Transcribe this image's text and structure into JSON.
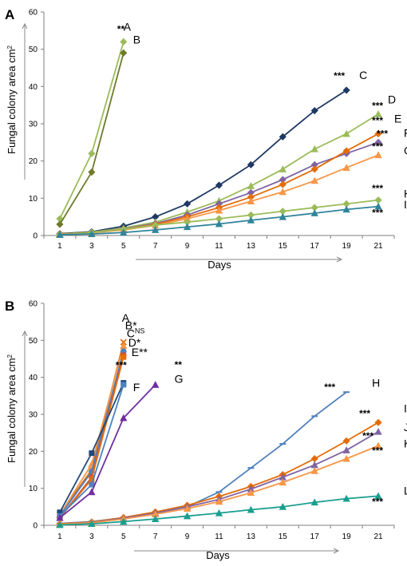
{
  "chart_data": [
    {
      "panel": "A",
      "type": "line",
      "ylabel": "Fungal colony area cm",
      "ylabel_superscript": "2",
      "xlabel": "Days",
      "x": [
        1,
        3,
        5,
        7,
        9,
        11,
        13,
        15,
        17,
        19,
        21
      ],
      "ylim": [
        0,
        60
      ],
      "yticks": [
        0,
        10,
        20,
        30,
        40,
        50,
        60
      ],
      "grid": false,
      "series": [
        {
          "name": "A",
          "color": "#9bbb59",
          "marker": "diamond",
          "x": [
            1,
            3,
            5
          ],
          "values": [
            4.5,
            22,
            52
          ],
          "label_x": 5,
          "label_y": 55,
          "sig": ""
        },
        {
          "name": "B",
          "color": "#6f7a2a",
          "marker": "diamond",
          "x": [
            1,
            3,
            5
          ],
          "values": [
            3,
            17,
            49
          ],
          "label_x": 5.6,
          "label_y": 51.5,
          "sig": "**"
        },
        {
          "name": "C",
          "color": "#1f3864",
          "marker": "diamond",
          "x": [
            1,
            3,
            5,
            7,
            9,
            11,
            13,
            15,
            17,
            19
          ],
          "values": [
            0.5,
            1,
            2.5,
            5,
            8.5,
            13.5,
            19,
            26.5,
            33.5,
            39
          ],
          "label_x": 19.8,
          "label_y": 42,
          "sig": "***"
        },
        {
          "name": "D",
          "color": "#9bbb59",
          "marker": "triangle",
          "x": [
            1,
            3,
            5,
            7,
            9,
            11,
            13,
            15,
            17,
            19,
            21
          ],
          "values": [
            0.4,
            0.9,
            2,
            3.6,
            6.3,
            9.3,
            13.3,
            17.8,
            23.2,
            27.3,
            32.6
          ],
          "label_x": 21.6,
          "label_y": 35.5,
          "sig": "***"
        },
        {
          "name": "E",
          "color": "#8064a2",
          "marker": "diamond",
          "x": [
            1,
            3,
            5,
            7,
            9,
            11,
            13,
            15,
            17,
            19,
            21
          ],
          "values": [
            0.4,
            0.8,
            1.8,
            3.2,
            5.5,
            8.5,
            11.5,
            15,
            19,
            22,
            25
          ],
          "label_x": 22,
          "label_y": 30.3,
          "sig": "***"
        },
        {
          "name": "F",
          "color": "#e36c09",
          "marker": "diamond",
          "x": [
            1,
            3,
            5,
            7,
            9,
            11,
            13,
            15,
            17,
            19,
            21
          ],
          "values": [
            0.4,
            0.8,
            1.7,
            3,
            5,
            7.5,
            10.3,
            13.7,
            17.8,
            22.7,
            27.3
          ],
          "label_x": 22.6,
          "label_y": 26.5,
          "sig": "***"
        },
        {
          "name": "G",
          "color": "#f79646",
          "marker": "triangle",
          "x": [
            1,
            3,
            5,
            7,
            9,
            11,
            13,
            15,
            17,
            19,
            21
          ],
          "values": [
            0.3,
            0.7,
            1.5,
            2.7,
            4.5,
            6.7,
            9.2,
            11.7,
            14.7,
            18.2,
            21.6
          ],
          "label_x": 22.6,
          "label_y": 21.8,
          "sig": "***"
        },
        {
          "name": "H",
          "color": "#9bbb59",
          "marker": "diamond",
          "x": [
            1,
            3,
            5,
            7,
            9,
            11,
            13,
            15,
            17,
            19,
            21
          ],
          "values": [
            0.3,
            0.8,
            1.7,
            2.8,
            3.6,
            4.5,
            5.5,
            6.5,
            7.5,
            8.5,
            9.5
          ],
          "label_x": 22.6,
          "label_y": 10.2,
          "sig": "***"
        },
        {
          "name": "I",
          "color": "#31849b",
          "marker": "triangle",
          "x": [
            1,
            3,
            5,
            7,
            9,
            11,
            13,
            15,
            17,
            19,
            21
          ],
          "values": [
            0.2,
            0.4,
            0.8,
            1.5,
            2.3,
            3.1,
            4.1,
            5,
            6,
            7,
            7.8
          ],
          "label_x": 22.6,
          "label_y": 7.3,
          "sig": "***"
        }
      ],
      "significance": [
        {
          "text": "**",
          "x": 4.6,
          "y": 54.5
        },
        {
          "text": "***",
          "x": 18.2,
          "y": 42
        },
        {
          "text": "***",
          "x": 20.6,
          "y": 34
        },
        {
          "text": "***",
          "x": 20.6,
          "y": 30
        },
        {
          "text": "***",
          "x": 20.9,
          "y": 26.5
        },
        {
          "text": "***",
          "x": 20.6,
          "y": 23
        },
        {
          "text": "***",
          "x": 20.6,
          "y": 11.8
        },
        {
          "text": "***",
          "x": 20.6,
          "y": 5.3
        }
      ]
    },
    {
      "panel": "B",
      "type": "line",
      "ylabel": "Fungal colony area cm",
      "ylabel_superscript": "2",
      "xlabel": "Days",
      "x": [
        1,
        3,
        5,
        7,
        9,
        11,
        13,
        15,
        17,
        19,
        21
      ],
      "ylim": [
        0,
        60
      ],
      "yticks": [
        0,
        10,
        20,
        30,
        40,
        50,
        60
      ],
      "grid": false,
      "series": [
        {
          "name": "A",
          "label": "A",
          "color": "#e36c09",
          "marker": "x",
          "x": [
            1,
            3,
            5
          ],
          "values": [
            3,
            15,
            49.5
          ],
          "label_x": 4.9,
          "label_y": 55
        },
        {
          "name": "B",
          "label": "B*",
          "color": "#f79646",
          "marker": "triangle",
          "x": [
            1,
            3,
            5
          ],
          "values": [
            2.8,
            16.5,
            48.5
          ],
          "label_x": 5.1,
          "label_y": 53
        },
        {
          "name": "C",
          "label": "C",
          "sup": "NS",
          "color": "#4f81bd",
          "marker": "circle",
          "x": [
            1,
            3,
            5
          ],
          "values": [
            2.5,
            14.5,
            47
          ],
          "label_x": 5.2,
          "label_y": 50.8
        },
        {
          "name": "D",
          "label": "D*",
          "color": "#c0504d",
          "marker": "circle",
          "x": [
            1,
            3,
            5
          ],
          "values": [
            2,
            13,
            46
          ],
          "label_x": 5.3,
          "label_y": 48.3
        },
        {
          "name": "E",
          "label": "E**",
          "color": "#e46c0a",
          "marker": "square",
          "x": [
            1,
            3,
            5
          ],
          "values": [
            2,
            12.5,
            45.5
          ],
          "label_x": 5.5,
          "label_y": 45.8
        },
        {
          "name": "F",
          "label": "F",
          "color": "#1f497d",
          "marker": "square",
          "x": [
            1,
            3,
            5
          ],
          "values": [
            3.5,
            19.5,
            38.5
          ],
          "label_x": 5.6,
          "label_y": 36.3
        },
        {
          "name": "F2",
          "label": "",
          "color": "#4f81bd",
          "marker": "square",
          "x": [
            1,
            3,
            5
          ],
          "values": [
            2.5,
            11,
            38
          ],
          "label_x": 5.6,
          "label_y": 36.3
        },
        {
          "name": "G",
          "label": "G",
          "color": "#7030a0",
          "marker": "triangle",
          "x": [
            1,
            3,
            5,
            7
          ],
          "values": [
            2,
            9,
            29,
            38
          ],
          "label_x": 8.2,
          "label_y": 38.5
        },
        {
          "name": "H",
          "label": "H",
          "color": "#4f81bd",
          "marker": "dash",
          "x": [
            1,
            3,
            5,
            7,
            9,
            11,
            13,
            15,
            17,
            19
          ],
          "values": [
            0.5,
            1,
            2,
            3.5,
            5,
            9,
            15.5,
            22,
            29.5,
            36
          ],
          "label_x": 20.6,
          "label_y": 37.5
        },
        {
          "name": "I",
          "label": "I",
          "color": "#e36c09",
          "marker": "diamond",
          "x": [
            1,
            3,
            5,
            7,
            9,
            11,
            13,
            15,
            17,
            19,
            21
          ],
          "values": [
            0.4,
            0.9,
            2.1,
            3.6,
            5.4,
            7.8,
            10.5,
            13.7,
            18,
            22.8,
            27.8
          ],
          "label_x": 22.6,
          "label_y": 30.5
        },
        {
          "name": "J",
          "label": "J",
          "color": "#8064a2",
          "marker": "triangle",
          "x": [
            1,
            3,
            5,
            7,
            9,
            11,
            13,
            15,
            17,
            19,
            21
          ],
          "values": [
            0.3,
            0.8,
            1.9,
            3.3,
            5,
            7,
            9.8,
            13,
            16.3,
            20.3,
            25.3
          ],
          "label_x": 22.6,
          "label_y": 25.5
        },
        {
          "name": "K",
          "label": "K",
          "color": "#f79646",
          "marker": "triangle",
          "x": [
            1,
            3,
            5,
            7,
            9,
            11,
            13,
            15,
            17,
            19,
            21
          ],
          "values": [
            0.3,
            0.7,
            1.7,
            3,
            4.5,
            6.4,
            8.8,
            11.6,
            14.7,
            18,
            21.5
          ],
          "label_x": 22.6,
          "label_y": 21
        },
        {
          "name": "L",
          "label": "L",
          "color": "#1a9e8f",
          "marker": "triangle",
          "x": [
            1,
            3,
            5,
            7,
            9,
            11,
            13,
            15,
            17,
            19,
            21
          ],
          "values": [
            0.1,
            0.4,
            1,
            1.7,
            2.5,
            3.3,
            4.2,
            5,
            6.2,
            7.2,
            7.9
          ],
          "label_x": 22.6,
          "label_y": 8.3
        }
      ],
      "significance": [
        {
          "text": "***",
          "x": 4.5,
          "y": 42.4
        },
        {
          "text": "**",
          "x": 8.2,
          "y": 42.5
        },
        {
          "text": "***",
          "x": 17.6,
          "y": 36.5
        },
        {
          "text": "***",
          "x": 19.8,
          "y": 29.3
        },
        {
          "text": "***",
          "x": 20,
          "y": 23.3
        },
        {
          "text": "***",
          "x": 20.6,
          "y": 19.3
        },
        {
          "text": "***",
          "x": 20.6,
          "y": 5.5
        }
      ]
    }
  ]
}
